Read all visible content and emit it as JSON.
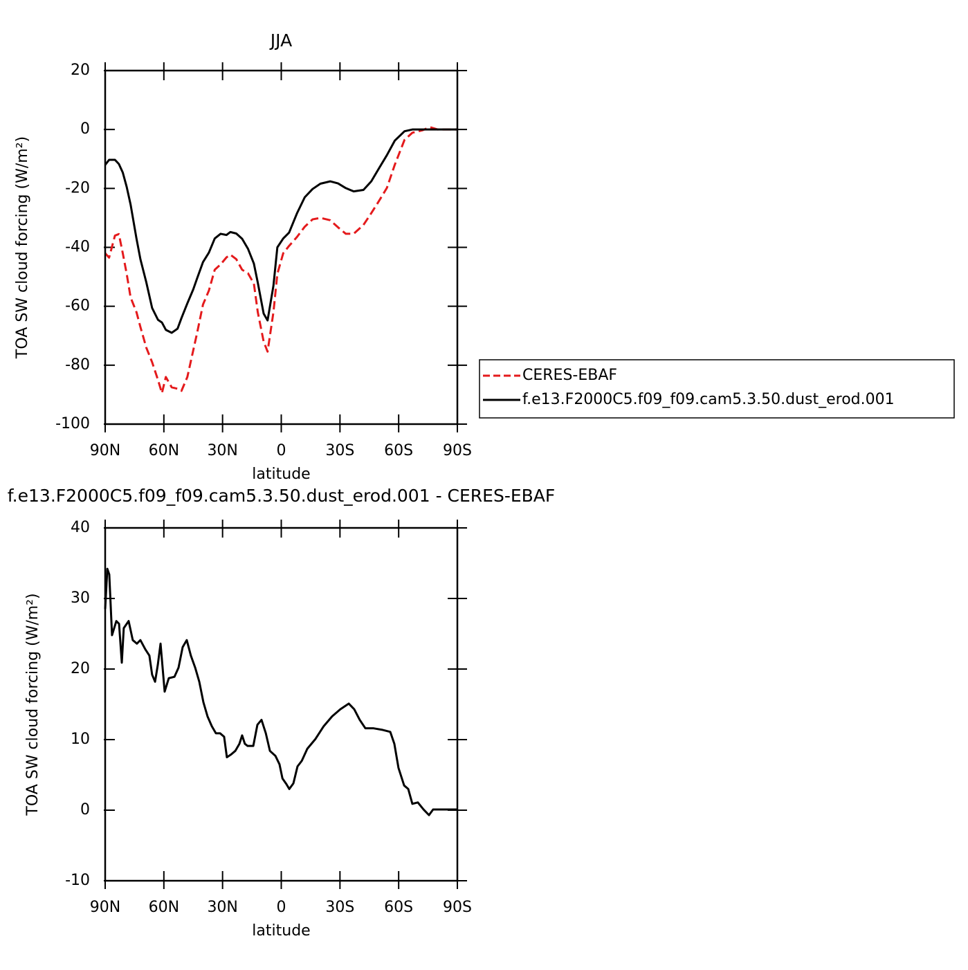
{
  "chart_data": [
    {
      "type": "line",
      "title": "JJA",
      "xlabel": "latitude",
      "ylabel": "TOA SW cloud forcing (W/m²)",
      "xlim": [
        90,
        -90
      ],
      "xticks": [
        {
          "value": 90,
          "label": "90N"
        },
        {
          "value": 60,
          "label": "60N"
        },
        {
          "value": 30,
          "label": "30N"
        },
        0,
        {
          "value": -30,
          "label": "30S"
        },
        {
          "value": -60,
          "label": "60S"
        },
        {
          "value": -90,
          "label": "90S"
        }
      ],
      "ylim": [
        -100,
        20
      ],
      "yticks": [
        -100,
        -80,
        -60,
        -40,
        -20,
        0,
        20
      ],
      "legend": "outside-right",
      "x": [
        90,
        88,
        85,
        83,
        81,
        79,
        77,
        74,
        72,
        69,
        66,
        63,
        61,
        59,
        56,
        53,
        51,
        48,
        45,
        43,
        40,
        37,
        34,
        31,
        28,
        26,
        23,
        20,
        17,
        14,
        12,
        9,
        7,
        4,
        2,
        -1,
        -4,
        -8,
        -12,
        -16,
        -20,
        -25,
        -29,
        -33,
        -37,
        -42,
        -46,
        -50,
        -54,
        -58,
        -63,
        -67,
        -72,
        -76,
        -80,
        -90
      ],
      "series": [
        {
          "name": "CERES-EBAF",
          "color": "#e41a1c",
          "dash": true,
          "values": [
            -42,
            -43.5,
            -36,
            -35.5,
            -42,
            -49,
            -57,
            -62,
            -67,
            -74,
            -79,
            -85,
            -89.5,
            -84,
            -87.5,
            -88,
            -88.7,
            -84,
            -75,
            -69,
            -59.4,
            -54.7,
            -47.6,
            -45.8,
            -43.4,
            -42.5,
            -44,
            -47.6,
            -48.8,
            -52.3,
            -62,
            -72,
            -75.4,
            -62,
            -49,
            -42,
            -39.5,
            -36.5,
            -33,
            -30.5,
            -30,
            -30.8,
            -33.2,
            -35.4,
            -35.4,
            -32.4,
            -28.4,
            -24.2,
            -19.8,
            -12,
            -3.5,
            -1.1,
            -0.3,
            0.8,
            0,
            0
          ]
        },
        {
          "name": "f.e13.F2000C5.f09_f09.cam5.3.50.dust_erod.001",
          "color": "#000000",
          "dash": false,
          "values": [
            -12,
            -10.3,
            -10.3,
            -11.7,
            -14.6,
            -19.5,
            -25.5,
            -37,
            -44,
            -51.8,
            -60.6,
            -64.6,
            -65.5,
            -68,
            -69,
            -67.6,
            -64,
            -59,
            -54.3,
            -50.5,
            -45,
            -41.8,
            -37,
            -35.4,
            -35.8,
            -34.8,
            -35.3,
            -37.1,
            -40.5,
            -45.5,
            -52,
            -62.5,
            -64.8,
            -53,
            -40,
            -37,
            -35,
            -28.5,
            -23,
            -20.2,
            -18.4,
            -17.6,
            -18.3,
            -19.9,
            -21,
            -20.5,
            -17.6,
            -13.1,
            -8.7,
            -3.8,
            -0.6,
            0,
            0,
            0,
            0,
            0
          ]
        }
      ]
    },
    {
      "type": "line",
      "title": "f.e13.F2000C5.f09_f09.cam5.3.50.dust_erod.001 - CERES-EBAF",
      "xlabel": "latitude",
      "ylabel": "TOA SW cloud forcing (W/m²)",
      "xlim": [
        90,
        -90
      ],
      "xticks": [
        {
          "value": 90,
          "label": "90N"
        },
        {
          "value": 60,
          "label": "60N"
        },
        {
          "value": 30,
          "label": "30N"
        },
        0,
        {
          "value": -30,
          "label": "30S"
        },
        {
          "value": -60,
          "label": "60S"
        },
        {
          "value": -90,
          "label": "90S"
        }
      ],
      "ylim": [
        -10,
        40
      ],
      "yticks": [
        -10,
        0,
        10,
        20,
        30,
        40
      ],
      "x": [
        90,
        88.9,
        87.9,
        86.5,
        84.3,
        82.9,
        81.5,
        80.5,
        78,
        75.9,
        73.8,
        72,
        69.5,
        67.4,
        66,
        64.5,
        63.1,
        61.7,
        59.6,
        57.5,
        54.6,
        52.5,
        50.4,
        48.3,
        46.2,
        44,
        41.9,
        39.8,
        37.7,
        35.5,
        33.4,
        31.3,
        29.2,
        27.8,
        25.6,
        23.5,
        21.4,
        20,
        18.6,
        17.2,
        14.3,
        12.2,
        10.1,
        7.9,
        5.8,
        3,
        0.9,
        -0.6,
        -2.6,
        -4.1,
        -6.2,
        -8.3,
        -10.5,
        -13.3,
        -17.5,
        -21.7,
        -26,
        -30.2,
        -34.5,
        -37.3,
        -40.1,
        -43,
        -47.2,
        -51.4,
        -55.7,
        -57.8,
        -59.9,
        -62.8,
        -64.9,
        -67,
        -69.8,
        -72.7,
        -75.5,
        -77.6,
        -80.4,
        -84.7,
        -90
      ],
      "color": "#000000",
      "values": [
        28.5,
        34.2,
        33.4,
        24.8,
        26.8,
        26.4,
        20.9,
        25.8,
        26.8,
        24.1,
        23.6,
        24.1,
        22.8,
        21.9,
        19.2,
        18.2,
        20.6,
        23.6,
        16.8,
        18.7,
        18.9,
        20.2,
        23.1,
        24.1,
        21.9,
        20.2,
        18.2,
        15.3,
        13.3,
        11.9,
        10.9,
        10.9,
        10.4,
        7.5,
        7.9,
        8.4,
        9.4,
        10.6,
        9.4,
        9.1,
        9.1,
        12.1,
        12.8,
        10.9,
        8.4,
        7.7,
        6.5,
        4.5,
        3.7,
        3,
        3.8,
        6.2,
        7,
        8.7,
        10.1,
        11.9,
        13.3,
        14.3,
        15.1,
        14.3,
        12.8,
        11.6,
        11.6,
        11.4,
        11.1,
        9.4,
        6,
        3.5,
        3,
        0.9,
        1.1,
        0.1,
        -0.7,
        0.1,
        0.1,
        0.1,
        0.1
      ]
    }
  ]
}
